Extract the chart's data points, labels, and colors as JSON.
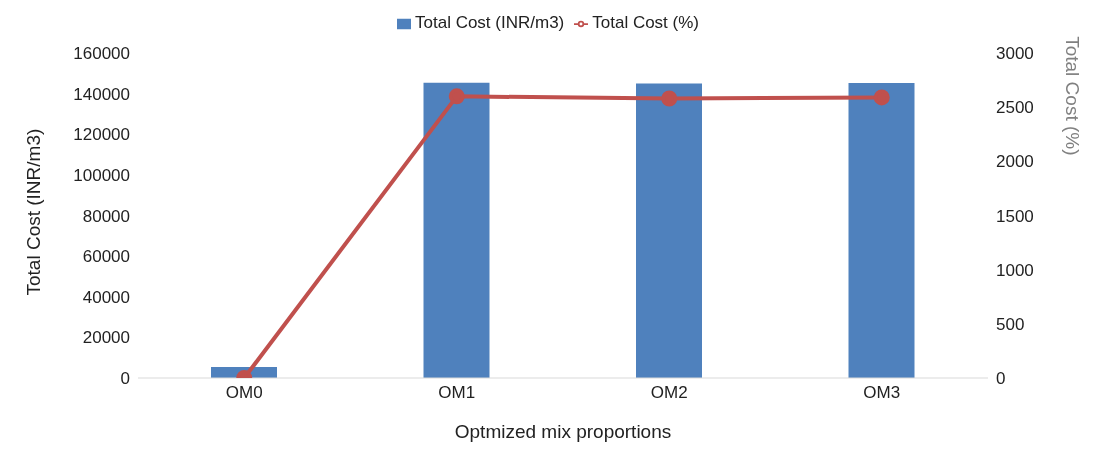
{
  "chart_data": {
    "type": "bar",
    "categories": [
      "OM0",
      "OM1",
      "OM2",
      "OM3"
    ],
    "xlabel": "Optmized mix proportions",
    "ylabel": "Total Cost (INR/m3)",
    "y2label": "Total Cost (%)",
    "series": [
      {
        "name": "Total Cost (INR/m3)",
        "color": "#4f81bd",
        "values": [
          5400,
          145400,
          145000,
          145200
        ]
      },
      {
        "name": "Total Cost (%)",
        "type": "line",
        "axis": "y2",
        "color": "#c0504d",
        "marker": "circle",
        "values": [
          0,
          2600,
          2580,
          2590
        ]
      }
    ],
    "ylim": [
      0,
      160000
    ],
    "yticks": [
      0,
      20000,
      40000,
      60000,
      80000,
      100000,
      120000,
      140000,
      160000
    ],
    "y2lim": [
      0,
      3000
    ],
    "y2ticks": [
      0,
      500,
      1000,
      1500,
      2000,
      2500,
      3000
    ],
    "grid": false,
    "legend": "top"
  }
}
